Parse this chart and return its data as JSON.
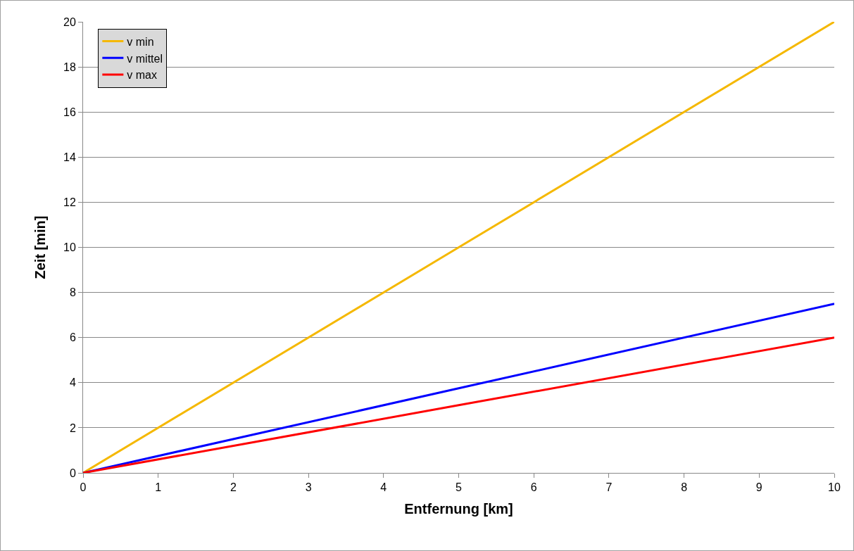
{
  "chart_data": {
    "type": "line",
    "xlabel": "Entfernung [km]",
    "ylabel": "Zeit [min]",
    "xlim": [
      0,
      10
    ],
    "xticks": [
      0,
      1,
      2,
      3,
      4,
      5,
      6,
      7,
      8,
      9,
      10
    ],
    "ylim": [
      0,
      20
    ],
    "yticks": [
      0,
      2,
      4,
      6,
      8,
      10,
      12,
      14,
      16,
      18,
      20
    ],
    "grid": "y",
    "legend": "top left",
    "line_style": "solid",
    "x": [
      0,
      5,
      10
    ],
    "series": [
      {
        "name": "v min",
        "color": "#f5b800",
        "values": [
          0,
          10,
          20
        ]
      },
      {
        "name": "v mittel",
        "color": "#0000ff",
        "values": [
          0,
          3.75,
          7.5
        ]
      },
      {
        "name": "v max",
        "color": "#ff0000",
        "values": [
          0,
          3,
          6
        ]
      }
    ]
  }
}
